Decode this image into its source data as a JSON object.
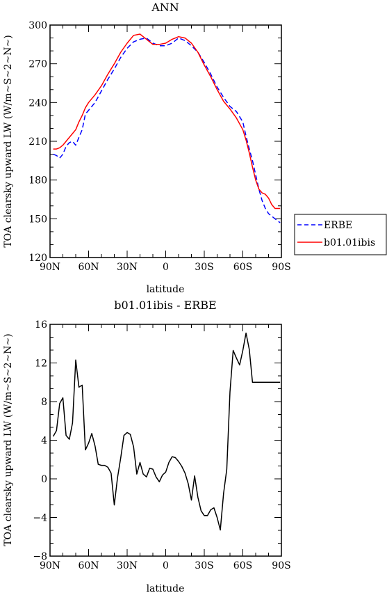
{
  "chart_data": [
    {
      "type": "line",
      "title": "ANN",
      "xlabel": "latitude",
      "ylabel": "TOA clearsky upward LW (W/m~S~2~N~)",
      "x_ticks": [
        "90N",
        "60N",
        "30N",
        "0",
        "30S",
        "60S",
        "90S"
      ],
      "x_tick_values": [
        90,
        60,
        30,
        0,
        -30,
        -60,
        -90
      ],
      "y_ticks": [
        "120",
        "150",
        "180",
        "210",
        "240",
        "270",
        "300"
      ],
      "xlim": [
        90,
        -90
      ],
      "ylim": [
        120,
        300
      ],
      "grid": false,
      "legend": "right",
      "series": [
        {
          "name": "ERBE",
          "color": "#0000ff",
          "dash": "dashed",
          "x": [
            87.5,
            85,
            82.5,
            80,
            77.5,
            75,
            72.5,
            70,
            67.5,
            65,
            62.5,
            60,
            55,
            50,
            45,
            40,
            35,
            30,
            25,
            20,
            15,
            10,
            5,
            0,
            -5,
            -10,
            -15,
            -20,
            -25,
            -30,
            -35,
            -40,
            -45,
            -50,
            -55,
            -60,
            -62.5,
            -65,
            -67.5,
            -70,
            -72.5,
            -75,
            -77.5,
            -80,
            -82.5,
            -85,
            -87.5,
            -89
          ],
          "y": [
            200,
            199,
            197,
            200,
            206,
            209,
            210,
            207,
            213,
            219,
            231,
            234,
            240,
            249,
            258,
            266,
            275,
            282,
            287,
            289,
            290,
            286,
            284,
            284,
            286,
            290,
            288,
            284,
            279,
            271,
            262,
            252,
            244,
            237,
            233,
            225,
            214,
            204,
            195,
            184,
            173,
            164,
            158,
            154,
            152,
            150,
            148,
            147
          ]
        },
        {
          "name": "b01.01ibis",
          "color": "#ff0000",
          "dash": "solid",
          "x": [
            87.5,
            85,
            82.5,
            80,
            77.5,
            75,
            72.5,
            70,
            67.5,
            65,
            62.5,
            60,
            55,
            50,
            45,
            40,
            35,
            30,
            25,
            20,
            15,
            10,
            5,
            0,
            -5,
            -10,
            -15,
            -20,
            -25,
            -30,
            -35,
            -40,
            -45,
            -50,
            -55,
            -60,
            -62.5,
            -65,
            -67.5,
            -70,
            -72.5,
            -75,
            -77.5,
            -80,
            -82.5,
            -85,
            -87.5,
            -89
          ],
          "y": [
            204,
            204,
            205,
            207,
            210,
            213,
            216,
            219,
            225,
            230,
            236,
            240,
            246,
            253,
            262,
            270,
            279,
            286,
            292,
            293,
            289,
            285,
            285,
            286,
            289,
            291,
            290,
            286,
            279,
            269,
            260,
            250,
            241,
            235,
            228,
            219,
            211,
            201,
            190,
            180,
            173,
            170,
            169,
            166,
            161,
            158,
            158,
            158
          ]
        }
      ]
    },
    {
      "type": "line",
      "title": "b01.01ibis - ERBE",
      "xlabel": "latitude",
      "ylabel": "TOA clearsky upward LW (W/m~S~2~N~)",
      "x_ticks": [
        "90N",
        "60N",
        "30N",
        "0",
        "30S",
        "60S",
        "90S"
      ],
      "x_tick_values": [
        90,
        60,
        30,
        0,
        -30,
        -60,
        -90
      ],
      "y_ticks": [
        "−8",
        "−4",
        "0",
        "4",
        "8",
        "12",
        "16"
      ],
      "xlim": [
        90,
        -90
      ],
      "ylim": [
        -8,
        16
      ],
      "grid": false,
      "series": [
        {
          "color": "#000000",
          "x": [
            87.5,
            85,
            82.5,
            80,
            77.5,
            75,
            72.5,
            70,
            67.5,
            65,
            62.5,
            60,
            57.5,
            55,
            52.5,
            50,
            47.5,
            45,
            42.5,
            40,
            37.5,
            35,
            32.5,
            30,
            27.5,
            25,
            22.5,
            20,
            17.5,
            15,
            12.5,
            10,
            7.5,
            5,
            2.5,
            0,
            -2.5,
            -5,
            -7.5,
            -10,
            -12.5,
            -15,
            -17.5,
            -20,
            -22.5,
            -25,
            -27.5,
            -30,
            -32.5,
            -35,
            -37.5,
            -40,
            -42.5,
            -45,
            -47.5,
            -50,
            -52.5,
            -55,
            -57.5,
            -60,
            -62.5,
            -65,
            -67.5,
            -70,
            -72.5,
            -75,
            -77.5,
            -80,
            -82.5,
            -85,
            -87.5,
            -89
          ],
          "y": [
            4.4,
            5.0,
            7.8,
            8.4,
            4.5,
            4.1,
            5.8,
            12.3,
            9.5,
            9.7,
            3.0,
            3.7,
            4.7,
            3.4,
            1.5,
            1.4,
            1.4,
            1.2,
            0.6,
            -2.7,
            0.1,
            2.2,
            4.5,
            4.8,
            4.6,
            3.3,
            0.5,
            1.7,
            0.5,
            0.2,
            1.1,
            1.0,
            0.2,
            -0.3,
            0.4,
            0.7,
            1.7,
            2.3,
            2.2,
            1.8,
            1.3,
            0.6,
            -0.5,
            -2.2,
            0.3,
            -1.9,
            -3.3,
            -3.8,
            -3.8,
            -3.2,
            -3.0,
            -4.0,
            -5.3,
            -1.5,
            1.0,
            9.0,
            13.3,
            12.5,
            11.8,
            13.3,
            15.1,
            13.4,
            10.0,
            10.0,
            10.0,
            10.0,
            10.0,
            10.0,
            10.0,
            10.0,
            10.0,
            10.0
          ]
        }
      ]
    }
  ]
}
